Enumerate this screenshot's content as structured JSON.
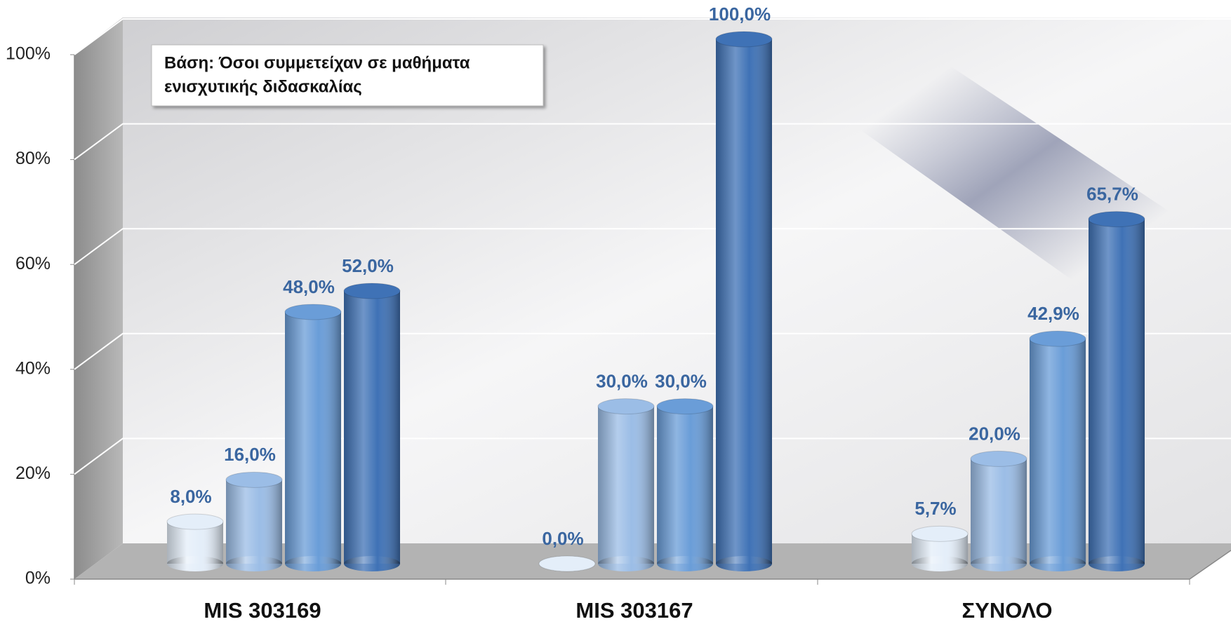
{
  "chart_data": {
    "type": "bar3d",
    "annotation": [
      "Βάση: Όσοι συμμετείχαν σε μαθήματα",
      "ενισχυτικής διδασκαλίας"
    ],
    "categories": [
      "MIS 303169",
      "MIS 303167",
      "ΣΥΝΟΛΟ"
    ],
    "series": [
      {
        "color": "#e4eef9",
        "values": [
          8,
          0,
          5.7
        ],
        "value_labels": [
          "8,0%",
          "0,0%",
          "5,7%"
        ]
      },
      {
        "color": "#9bbde6",
        "values": [
          16,
          30,
          20
        ],
        "value_labels": [
          "16,0%",
          "30,0%",
          "20,0%"
        ]
      },
      {
        "color": "#6a9dd8",
        "values": [
          48,
          30,
          42.9
        ],
        "value_labels": [
          "48,0%",
          "30,0%",
          "42,9%"
        ]
      },
      {
        "color": "#3f72b6",
        "values": [
          52,
          100,
          65.7
        ],
        "value_labels": [
          "52,0%",
          "100,0%",
          "65,7%"
        ]
      }
    ],
    "ylim": [
      0,
      100
    ],
    "yticks": [
      {
        "value": 0,
        "label": "0%"
      },
      {
        "value": 20,
        "label": "20%"
      },
      {
        "value": 40,
        "label": "40%"
      },
      {
        "value": 60,
        "label": "60%"
      },
      {
        "value": 80,
        "label": "80%"
      },
      {
        "value": 100,
        "label": "100%"
      }
    ],
    "grid": true
  }
}
